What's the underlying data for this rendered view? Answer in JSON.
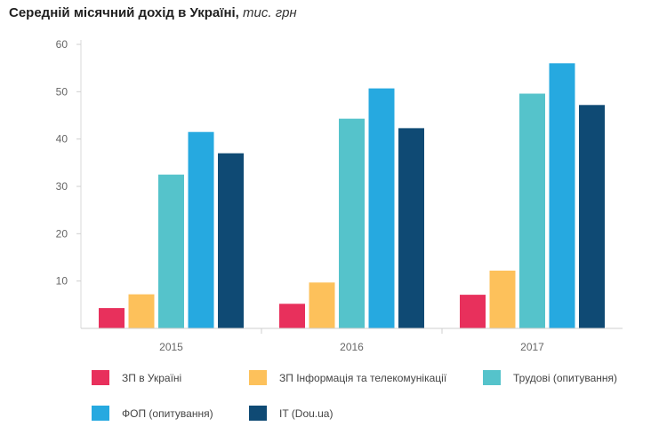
{
  "title": {
    "main": "Середній місячний дохід в Україні,",
    "unit": "тис. грн"
  },
  "chart_data": {
    "type": "bar",
    "categories": [
      "2015",
      "2016",
      "2017"
    ],
    "ylim": [
      0,
      60
    ],
    "yticks": [
      10,
      20,
      30,
      40,
      50,
      60
    ],
    "grid": false,
    "legend_position": "bottom",
    "series": [
      {
        "name": "ЗП в Україні",
        "color": "#e8305c",
        "values": [
          4.3,
          5.2,
          7.1
        ]
      },
      {
        "name": "ЗП Інформація та телекомунікації",
        "color": "#fdc15b",
        "values": [
          7.2,
          9.7,
          12.2
        ]
      },
      {
        "name": "Трудові (опитування)",
        "color": "#55c3cb",
        "values": [
          32.5,
          44.3,
          49.6
        ]
      },
      {
        "name": "ФОП (опитування)",
        "color": "#26a9e0",
        "values": [
          41.5,
          50.7,
          56.0
        ]
      },
      {
        "name": "IT (Dou.ua)",
        "color": "#0f4a74",
        "values": [
          37.0,
          42.3,
          47.2
        ]
      }
    ]
  }
}
